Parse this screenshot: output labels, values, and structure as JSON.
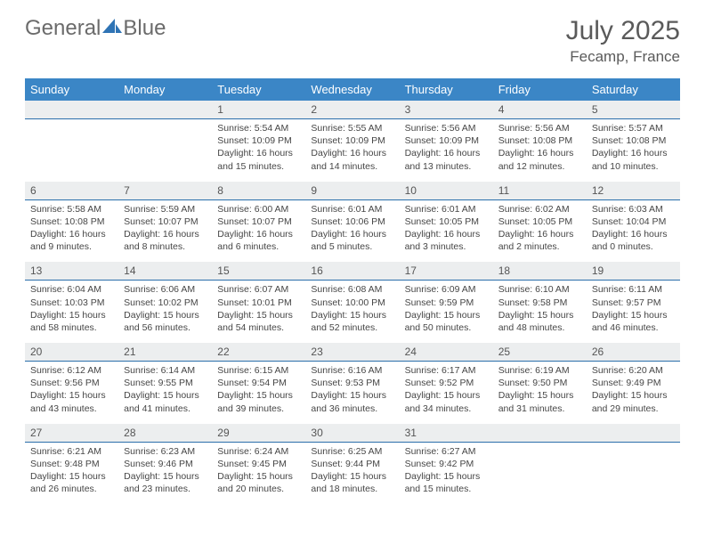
{
  "brand": {
    "part1": "General",
    "part2": "Blue"
  },
  "title": "July 2025",
  "location": "Fecamp, France",
  "colors": {
    "header_bg": "#3b86c6",
    "daynum_bg": "#eceeef",
    "rule": "#2b6fab",
    "text": "#464646",
    "title_text": "#5a5a5a",
    "logo_text": "#6b6b6b",
    "logo_blue": "#2f74b5"
  },
  "weekdays": [
    "Sunday",
    "Monday",
    "Tuesday",
    "Wednesday",
    "Thursday",
    "Friday",
    "Saturday"
  ],
  "weeks": [
    [
      {
        "num": "",
        "text": ""
      },
      {
        "num": "",
        "text": ""
      },
      {
        "num": "1",
        "text": "Sunrise: 5:54 AM\nSunset: 10:09 PM\nDaylight: 16 hours and 15 minutes."
      },
      {
        "num": "2",
        "text": "Sunrise: 5:55 AM\nSunset: 10:09 PM\nDaylight: 16 hours and 14 minutes."
      },
      {
        "num": "3",
        "text": "Sunrise: 5:56 AM\nSunset: 10:09 PM\nDaylight: 16 hours and 13 minutes."
      },
      {
        "num": "4",
        "text": "Sunrise: 5:56 AM\nSunset: 10:08 PM\nDaylight: 16 hours and 12 minutes."
      },
      {
        "num": "5",
        "text": "Sunrise: 5:57 AM\nSunset: 10:08 PM\nDaylight: 16 hours and 10 minutes."
      }
    ],
    [
      {
        "num": "6",
        "text": "Sunrise: 5:58 AM\nSunset: 10:08 PM\nDaylight: 16 hours and 9 minutes."
      },
      {
        "num": "7",
        "text": "Sunrise: 5:59 AM\nSunset: 10:07 PM\nDaylight: 16 hours and 8 minutes."
      },
      {
        "num": "8",
        "text": "Sunrise: 6:00 AM\nSunset: 10:07 PM\nDaylight: 16 hours and 6 minutes."
      },
      {
        "num": "9",
        "text": "Sunrise: 6:01 AM\nSunset: 10:06 PM\nDaylight: 16 hours and 5 minutes."
      },
      {
        "num": "10",
        "text": "Sunrise: 6:01 AM\nSunset: 10:05 PM\nDaylight: 16 hours and 3 minutes."
      },
      {
        "num": "11",
        "text": "Sunrise: 6:02 AM\nSunset: 10:05 PM\nDaylight: 16 hours and 2 minutes."
      },
      {
        "num": "12",
        "text": "Sunrise: 6:03 AM\nSunset: 10:04 PM\nDaylight: 16 hours and 0 minutes."
      }
    ],
    [
      {
        "num": "13",
        "text": "Sunrise: 6:04 AM\nSunset: 10:03 PM\nDaylight: 15 hours and 58 minutes."
      },
      {
        "num": "14",
        "text": "Sunrise: 6:06 AM\nSunset: 10:02 PM\nDaylight: 15 hours and 56 minutes."
      },
      {
        "num": "15",
        "text": "Sunrise: 6:07 AM\nSunset: 10:01 PM\nDaylight: 15 hours and 54 minutes."
      },
      {
        "num": "16",
        "text": "Sunrise: 6:08 AM\nSunset: 10:00 PM\nDaylight: 15 hours and 52 minutes."
      },
      {
        "num": "17",
        "text": "Sunrise: 6:09 AM\nSunset: 9:59 PM\nDaylight: 15 hours and 50 minutes."
      },
      {
        "num": "18",
        "text": "Sunrise: 6:10 AM\nSunset: 9:58 PM\nDaylight: 15 hours and 48 minutes."
      },
      {
        "num": "19",
        "text": "Sunrise: 6:11 AM\nSunset: 9:57 PM\nDaylight: 15 hours and 46 minutes."
      }
    ],
    [
      {
        "num": "20",
        "text": "Sunrise: 6:12 AM\nSunset: 9:56 PM\nDaylight: 15 hours and 43 minutes."
      },
      {
        "num": "21",
        "text": "Sunrise: 6:14 AM\nSunset: 9:55 PM\nDaylight: 15 hours and 41 minutes."
      },
      {
        "num": "22",
        "text": "Sunrise: 6:15 AM\nSunset: 9:54 PM\nDaylight: 15 hours and 39 minutes."
      },
      {
        "num": "23",
        "text": "Sunrise: 6:16 AM\nSunset: 9:53 PM\nDaylight: 15 hours and 36 minutes."
      },
      {
        "num": "24",
        "text": "Sunrise: 6:17 AM\nSunset: 9:52 PM\nDaylight: 15 hours and 34 minutes."
      },
      {
        "num": "25",
        "text": "Sunrise: 6:19 AM\nSunset: 9:50 PM\nDaylight: 15 hours and 31 minutes."
      },
      {
        "num": "26",
        "text": "Sunrise: 6:20 AM\nSunset: 9:49 PM\nDaylight: 15 hours and 29 minutes."
      }
    ],
    [
      {
        "num": "27",
        "text": "Sunrise: 6:21 AM\nSunset: 9:48 PM\nDaylight: 15 hours and 26 minutes."
      },
      {
        "num": "28",
        "text": "Sunrise: 6:23 AM\nSunset: 9:46 PM\nDaylight: 15 hours and 23 minutes."
      },
      {
        "num": "29",
        "text": "Sunrise: 6:24 AM\nSunset: 9:45 PM\nDaylight: 15 hours and 20 minutes."
      },
      {
        "num": "30",
        "text": "Sunrise: 6:25 AM\nSunset: 9:44 PM\nDaylight: 15 hours and 18 minutes."
      },
      {
        "num": "31",
        "text": "Sunrise: 6:27 AM\nSunset: 9:42 PM\nDaylight: 15 hours and 15 minutes."
      },
      {
        "num": "",
        "text": ""
      },
      {
        "num": "",
        "text": ""
      }
    ]
  ]
}
